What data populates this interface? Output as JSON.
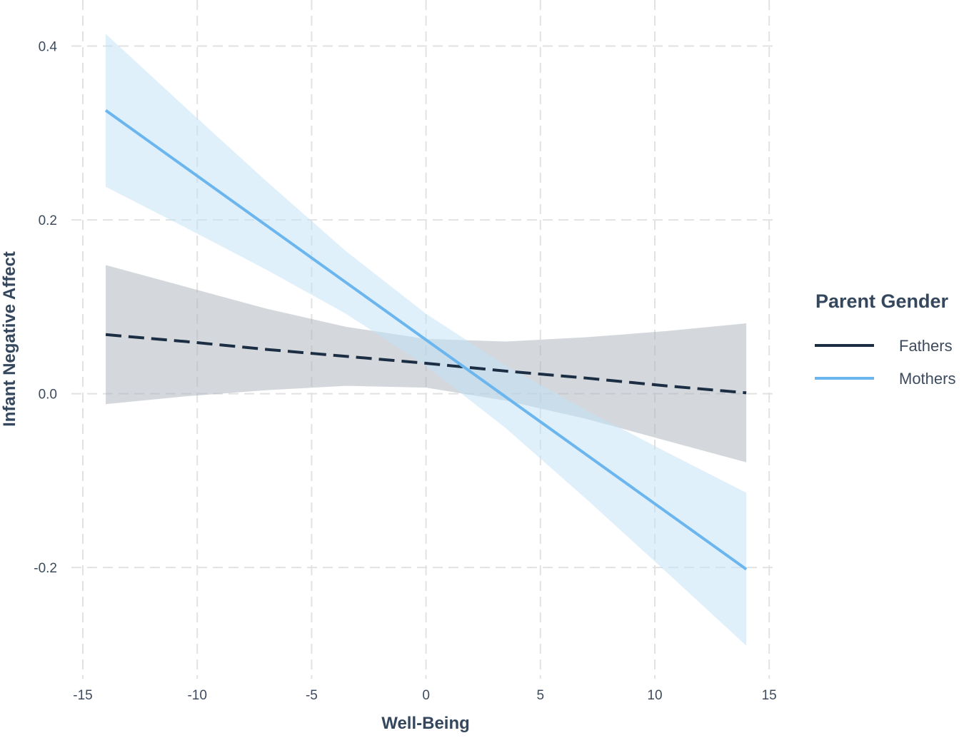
{
  "chart_data": {
    "type": "line",
    "title": "",
    "xlabel": "Well-Being",
    "ylabel": "Infant Negative Affect",
    "xlim": [
      -15.5,
      15.4
    ],
    "ylim": [
      -0.328,
      0.453
    ],
    "x_ticks": [
      -15,
      -10,
      -5,
      0,
      5,
      10,
      15
    ],
    "x_tick_labels": [
      "-15",
      "-10",
      "-5",
      "0",
      "5",
      "10",
      "15"
    ],
    "y_ticks": [
      -0.2,
      0.0,
      0.2,
      0.4
    ],
    "y_tick_labels": [
      "-0.2",
      "0.0",
      "0.2",
      "0.4"
    ],
    "grid": true,
    "legend": {
      "title": "Parent Gender",
      "placement": "right"
    },
    "x": [
      -14,
      -10.5,
      -7,
      -3.5,
      0,
      3.5,
      7,
      10.5,
      14
    ],
    "series": [
      {
        "name": "Fathers",
        "color": "#1c2e44",
        "ribbon_color": "#a9b2bb",
        "dash": "dashed",
        "values": [
          0.068,
          0.06,
          0.051,
          0.043,
          0.035,
          0.026,
          0.018,
          0.009,
          0.001
        ],
        "upper": [
          0.148,
          0.123,
          0.098,
          0.077,
          0.063,
          0.06,
          0.065,
          0.072,
          0.081
        ],
        "lower": [
          -0.012,
          -0.003,
          0.004,
          0.009,
          0.007,
          -0.008,
          -0.029,
          -0.054,
          -0.079
        ]
      },
      {
        "name": "Mothers",
        "color": "#6bb6ee",
        "ribbon_color": "#bfe2f7",
        "dash": "solid",
        "values": [
          0.326,
          0.26,
          0.194,
          0.128,
          0.062,
          -0.004,
          -0.07,
          -0.136,
          -0.202
        ],
        "upper": [
          0.414,
          0.329,
          0.245,
          0.164,
          0.092,
          0.032,
          -0.019,
          -0.067,
          -0.114
        ],
        "lower": [
          0.238,
          0.191,
          0.143,
          0.092,
          0.032,
          -0.04,
          -0.121,
          -0.205,
          -0.29
        ]
      }
    ]
  }
}
